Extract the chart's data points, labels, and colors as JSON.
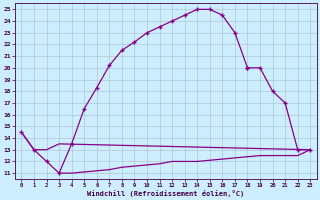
{
  "xlabel": "Windchill (Refroidissement éolien,°C)",
  "background_color": "#cceeff",
  "line_color": "#880088",
  "grid_color": "#aabbcc",
  "xlim": [
    -0.5,
    23.5
  ],
  "ylim": [
    10.5,
    25.5
  ],
  "xticks": [
    0,
    1,
    2,
    3,
    4,
    5,
    6,
    7,
    8,
    9,
    10,
    11,
    12,
    13,
    14,
    15,
    16,
    17,
    18,
    19,
    20,
    21,
    22,
    23
  ],
  "yticks": [
    11,
    12,
    13,
    14,
    15,
    16,
    17,
    18,
    19,
    20,
    21,
    22,
    23,
    24,
    25
  ],
  "line1_x": [
    0,
    1,
    2,
    3,
    4,
    5,
    6,
    7,
    8,
    9,
    10,
    11,
    12,
    13,
    14,
    15,
    16,
    17,
    18
  ],
  "line1_y": [
    14.5,
    13,
    12,
    11,
    13.5,
    16.5,
    18.3,
    20.2,
    21.5,
    22.2,
    23.0,
    23.5,
    24.0,
    24.5,
    25.0,
    25.0,
    24.5,
    23.0,
    20.0
  ],
  "line2_x": [
    0,
    1,
    2,
    3,
    23
  ],
  "line2_y": [
    14.5,
    13,
    13,
    13.5,
    13.0
  ],
  "line3_x": [
    3,
    4,
    5,
    6,
    7,
    8,
    9,
    10,
    11,
    12,
    13,
    14,
    15,
    16,
    17,
    18,
    19,
    20,
    21,
    22,
    23
  ],
  "line3_y": [
    11,
    11,
    11.1,
    11.2,
    11.3,
    11.5,
    11.6,
    11.7,
    11.8,
    12.0,
    12.0,
    12.0,
    12.1,
    12.2,
    12.3,
    12.4,
    12.5,
    12.5,
    12.5,
    12.5,
    13.0
  ],
  "line4_x": [
    18,
    19,
    20,
    21,
    22,
    23
  ],
  "line4_y": [
    20.0,
    20.0,
    18.0,
    17.0,
    13.0,
    13.0
  ],
  "marker": "+"
}
